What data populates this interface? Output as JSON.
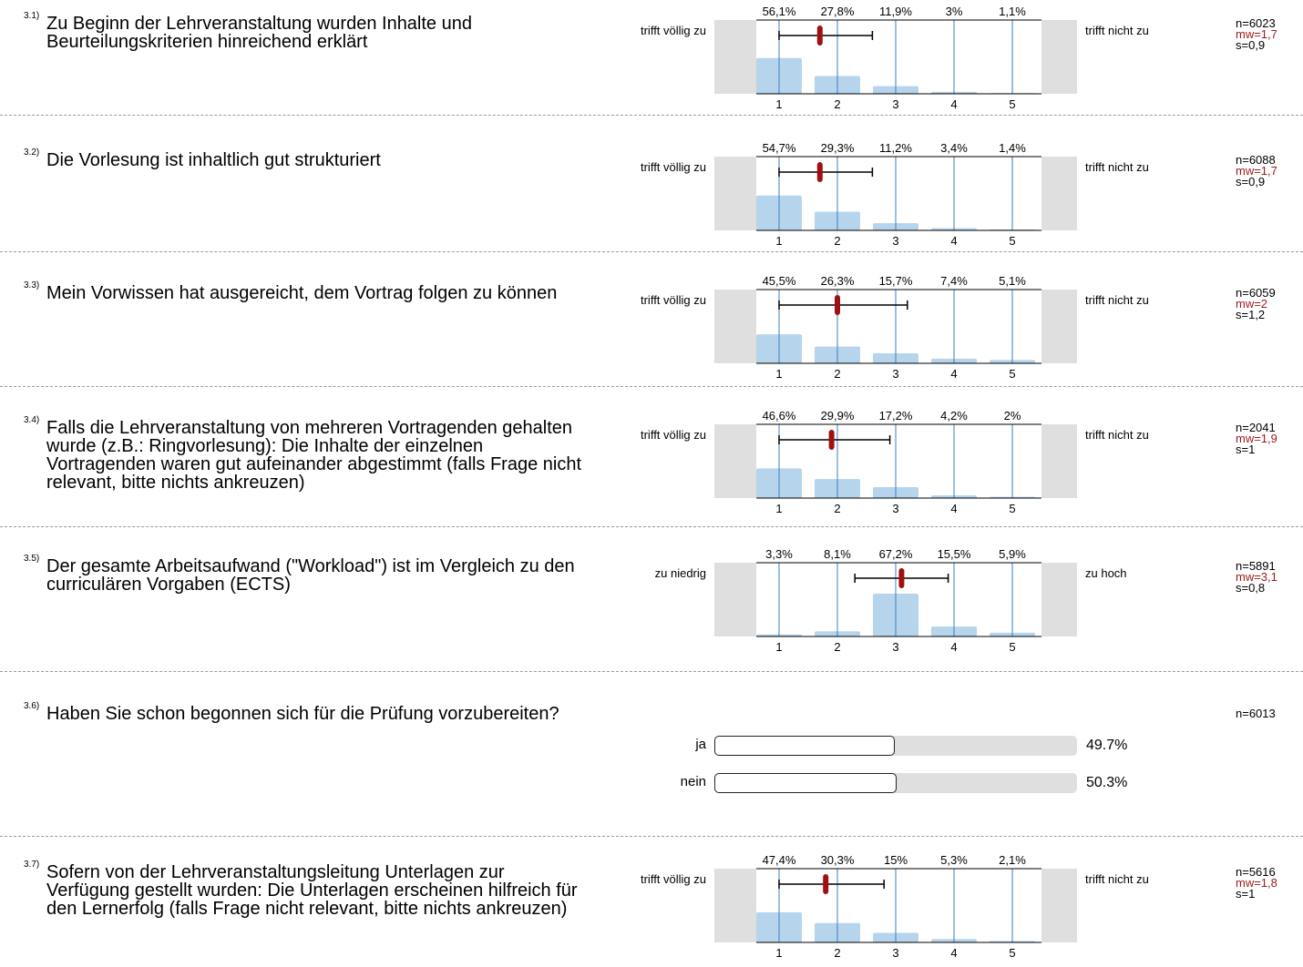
{
  "questions": [
    {
      "num": "3.1)",
      "text": "Zu Beginn der Lehrveranstaltung wurden Inhalte und Beurteilungskriterien hinreichend erklärt",
      "left_label": "trifft völlig zu",
      "right_label": "trifft nicht zu",
      "n": "n=6023",
      "mw": "mw=1,7",
      "s": "s=0,9"
    },
    {
      "num": "3.2)",
      "text": "Die Vorlesung ist inhaltlich gut strukturiert",
      "left_label": "trifft völlig zu",
      "right_label": "trifft nicht zu",
      "n": "n=6088",
      "mw": "mw=1,7",
      "s": "s=0,9"
    },
    {
      "num": "3.3)",
      "text": "Mein Vorwissen hat ausgereicht, dem Vortrag folgen zu können",
      "left_label": "trifft völlig zu",
      "right_label": "trifft nicht zu",
      "n": "n=6059",
      "mw": "mw=2",
      "s": "s=1,2"
    },
    {
      "num": "3.4)",
      "text": "Falls die Lehrveranstaltung von mehreren Vortragenden gehalten wurde (z.B.: Ringvorlesung): Die Inhalte der einzelnen Vortragenden waren gut aufeinander abgestimmt (falls Frage nicht relevant, bitte nichts ankreuzen)",
      "left_label": "trifft völlig zu",
      "right_label": "trifft nicht zu",
      "n": "n=2041",
      "mw": "mw=1,9",
      "s": "s=1"
    },
    {
      "num": "3.5)",
      "text": "Der gesamte Arbeitsaufwand (\"Workload\") ist im Vergleich zu den curriculären Vorgaben (ECTS)",
      "left_label": "zu niedrig",
      "right_label": "zu hoch",
      "n": "n=5891",
      "mw": "mw=3,1",
      "s": "s=0,8"
    },
    {
      "num": "3.6)",
      "text": "Haben Sie schon begonnen sich für die Prüfung vorzubereiten?",
      "n": "n=6013",
      "options": [
        {
          "label": "ja",
          "pct_text": "49.7%",
          "value": 49.7
        },
        {
          "label": "nein",
          "pct_text": "50.3%",
          "value": 50.3
        }
      ]
    },
    {
      "num": "3.7)",
      "text": "Sofern von der Lehrveranstaltungsleitung Unterlagen zur Verfügung gestellt wurden: Die Unterlagen erscheinen hilfreich für den Lernerfolg (falls Frage nicht relevant, bitte nichts ankreuzen)",
      "left_label": "trifft völlig zu",
      "right_label": "trifft nicht zu",
      "n": "n=5616",
      "mw": "mw=1,8",
      "s": "s=1"
    }
  ],
  "colors": {
    "bar": "#b6d4ec",
    "gridline": "#3a7fc1",
    "mean": "#a01010",
    "side": "#dfdfdf"
  },
  "chart_data": [
    {
      "type": "bar",
      "categories": [
        "1",
        "2",
        "3",
        "4",
        "5"
      ],
      "values": [
        56.1,
        27.8,
        11.9,
        3.0,
        1.1
      ],
      "value_labels": [
        "56,1%",
        "27,8%",
        "11,9%",
        "3%",
        "1,1%"
      ],
      "mean": 1.7,
      "sd": 0.9
    },
    {
      "type": "bar",
      "categories": [
        "1",
        "2",
        "3",
        "4",
        "5"
      ],
      "values": [
        54.7,
        29.3,
        11.2,
        3.4,
        1.4
      ],
      "value_labels": [
        "54,7%",
        "29,3%",
        "11,2%",
        "3,4%",
        "1,4%"
      ],
      "mean": 1.7,
      "sd": 0.9
    },
    {
      "type": "bar",
      "categories": [
        "1",
        "2",
        "3",
        "4",
        "5"
      ],
      "values": [
        45.5,
        26.3,
        15.7,
        7.4,
        5.1
      ],
      "value_labels": [
        "45,5%",
        "26,3%",
        "15,7%",
        "7,4%",
        "5,1%"
      ],
      "mean": 2.0,
      "sd": 1.2
    },
    {
      "type": "bar",
      "categories": [
        "1",
        "2",
        "3",
        "4",
        "5"
      ],
      "values": [
        46.6,
        29.9,
        17.2,
        4.2,
        2.0
      ],
      "value_labels": [
        "46,6%",
        "29,9%",
        "17,2%",
        "4,2%",
        "2%"
      ],
      "mean": 1.9,
      "sd": 1.0
    },
    {
      "type": "bar",
      "categories": [
        "1",
        "2",
        "3",
        "4",
        "5"
      ],
      "values": [
        3.3,
        8.1,
        67.2,
        15.5,
        5.9
      ],
      "value_labels": [
        "3,3%",
        "8,1%",
        "67,2%",
        "15,5%",
        "5,9%"
      ],
      "mean": 3.1,
      "sd": 0.8
    },
    {
      "type": "bar",
      "categories": [
        "ja",
        "nein"
      ],
      "values": [
        49.7,
        50.3
      ]
    },
    {
      "type": "bar",
      "categories": [
        "1",
        "2",
        "3",
        "4",
        "5"
      ],
      "values": [
        47.4,
        30.3,
        15.0,
        5.3,
        2.1
      ],
      "value_labels": [
        "47,4%",
        "30,3%",
        "15%",
        "5,3%",
        "2,1%"
      ],
      "mean": 1.8,
      "sd": 1.0
    }
  ]
}
